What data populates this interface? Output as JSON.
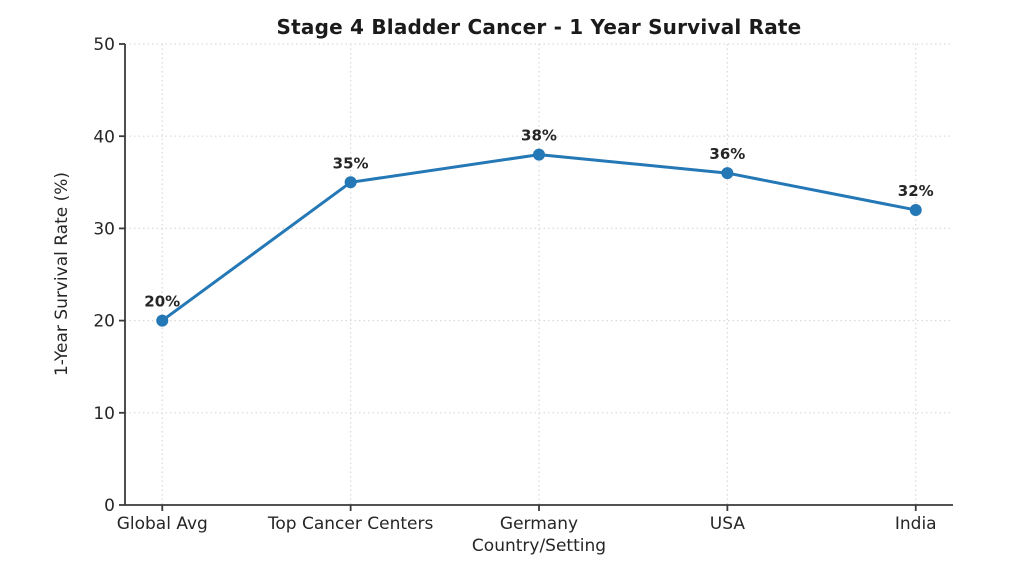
{
  "chart_data": {
    "type": "line",
    "title": "Stage 4 Bladder Cancer - 1 Year Survival Rate",
    "xlabel": "Country/Setting",
    "ylabel": "1-Year Survival Rate (%)",
    "categories": [
      "Global Avg",
      "Top Cancer Centers",
      "Germany",
      "USA",
      "India"
    ],
    "series": [
      {
        "name": "1-Year Survival Rate",
        "values": [
          20,
          35,
          38,
          36,
          32
        ],
        "point_labels": [
          "20%",
          "35%",
          "38%",
          "36%",
          "32%"
        ]
      }
    ],
    "ylim": [
      0,
      50
    ],
    "yticks": [
      0,
      10,
      20,
      30,
      40,
      50
    ],
    "grid": "dotted",
    "legend_position": "none",
    "colors": {
      "line": "#2478b6",
      "marker": "#2478b6",
      "text": "#262626",
      "title": "#1b1b1b",
      "grid": "#d9d9d9",
      "spine": "#3a3a3a",
      "background": "#ffffff"
    }
  }
}
